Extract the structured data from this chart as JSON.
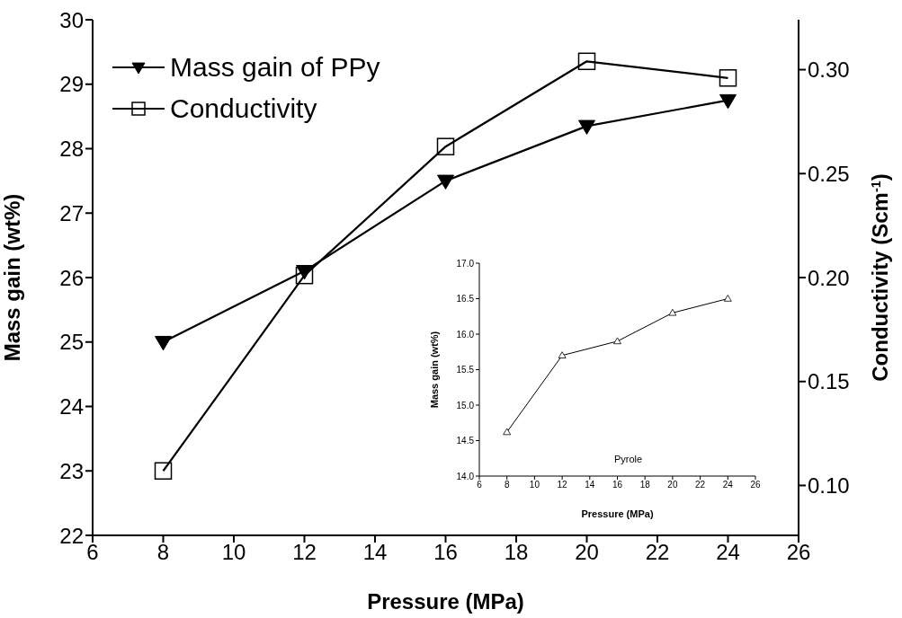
{
  "chart_data": [
    {
      "type": "line",
      "xlabel": "Pressure (MPa)",
      "ylabel": "Mass gain (wt%)",
      "y2label": "Conductivity (Scm$^{-1}$)",
      "x": [
        8,
        12,
        16,
        20,
        24
      ],
      "series": [
        {
          "name": "Mass gain of PPy",
          "color": "#000000",
          "values": [
            25.0,
            26.1,
            27.5,
            28.35,
            28.75
          ],
          "marker": "triangle"
        },
        {
          "name": "Conductivity",
          "color": "#000000",
          "values": [
            0.107,
            0.201,
            0.263,
            0.304,
            0.296
          ],
          "marker": "square",
          "axis": "y2"
        }
      ],
      "xlim": [
        6,
        26
      ],
      "xticks": [
        6,
        8,
        10,
        12,
        14,
        16,
        18,
        20,
        22,
        24,
        26
      ],
      "ylim": [
        22,
        30
      ],
      "yticks": [
        22,
        23,
        24,
        25,
        26,
        27,
        28,
        29,
        30
      ],
      "y2lim": [
        0.076,
        0.324
      ],
      "y2ticks": [
        {
          "value": 0.1,
          "label": "0.10"
        },
        {
          "value": 0.15,
          "label": "0.15"
        },
        {
          "value": 0.2,
          "label": "0.20"
        },
        {
          "value": 0.25,
          "label": "0.25"
        },
        {
          "value": 0.3,
          "label": "0.30"
        }
      ],
      "grid": false,
      "legend": "top left",
      "line_style": "solid"
    },
    {
      "type": "line",
      "xlabel": "Pressure (MPa)",
      "ylabel": "Mass gain (wt%)",
      "x": [
        8,
        12,
        16,
        20,
        24
      ],
      "series": [
        {
          "color": "#000000",
          "values": [
            14.62,
            15.7,
            15.9,
            16.3,
            16.5
          ],
          "marker": "triangle"
        }
      ],
      "xlim": [
        6,
        26
      ],
      "xticks": [
        6,
        8,
        10,
        12,
        14,
        16,
        18,
        20,
        22,
        24,
        26
      ],
      "ylim": [
        14,
        17
      ],
      "yticks": [
        {
          "value": 14,
          "label": "14.0"
        },
        {
          "value": 14.5,
          "label": "14.5"
        },
        {
          "value": 15,
          "label": "15.0"
        },
        {
          "value": 15.5,
          "label": "15.5"
        },
        {
          "value": 16,
          "label": "16.0"
        },
        {
          "value": 16.5,
          "label": "16.5"
        },
        {
          "value": 17,
          "label": "17.0"
        }
      ],
      "grid": false,
      "legend": false,
      "line_style": "solid",
      "annotations": [
        "Pyrole"
      ]
    }
  ]
}
